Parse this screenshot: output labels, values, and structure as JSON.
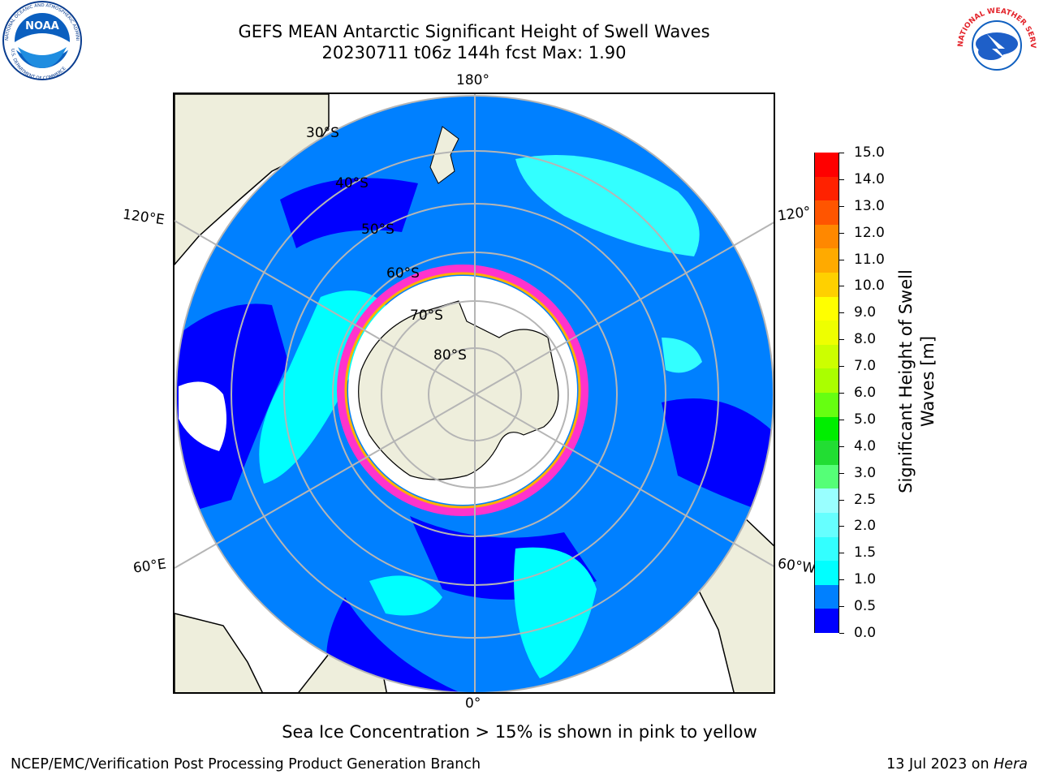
{
  "title_line1": "GEFS MEAN Antarctic Significant Height of Swell Waves",
  "title_line2": "20230711 t06z 144h fcst   Max: 1.90",
  "map": {
    "projection": "south polar stereographic",
    "longitude_labels": [
      {
        "text": "180°",
        "lon": 180
      },
      {
        "text": "120°E",
        "lon": 120
      },
      {
        "text": "120°",
        "lon": -120
      },
      {
        "text": "60°E",
        "lon": 60
      },
      {
        "text": "60°W",
        "lon": -60
      },
      {
        "text": "0°",
        "lon": 0
      }
    ],
    "latitude_labels": [
      "30°S",
      "40°S",
      "50°S",
      "60°S",
      "70°S",
      "80°S"
    ],
    "land_color": "#eeeedc",
    "ice_edge_colors": [
      "#ff33cc",
      "#ffb000",
      "#ffff33"
    ]
  },
  "colorbar": {
    "label": "Significant Height of Swell Waves [m]",
    "label_line1": "Significant Height of Swell",
    "label_line2": "Waves [m]",
    "ticks": [
      "0.0",
      "0.5",
      "1.0",
      "1.5",
      "2.0",
      "2.5",
      "3.0",
      "4.0",
      "5.0",
      "6.0",
      "7.0",
      "8.0",
      "9.0",
      "10.0",
      "11.0",
      "12.0",
      "13.0",
      "14.0",
      "15.0"
    ],
    "colors": [
      "#0000ff",
      "#0080ff",
      "#00ffff",
      "#33ffff",
      "#66ffff",
      "#99ffff",
      "#55ff77",
      "#22dd33",
      "#00ee00",
      "#66ff11",
      "#aaff00",
      "#ccff00",
      "#eeff00",
      "#ffff00",
      "#ffd000",
      "#ffaa00",
      "#ff8800",
      "#ff5500",
      "#ff2200",
      "#ff0000"
    ]
  },
  "note": "Sea Ice Concentration > 15% is shown in pink to yellow",
  "footer_left": "NCEP/EMC/Verification Post Processing Product Generation Branch",
  "footer_right_text": "13 Jul 2023 on",
  "footer_right_machine": "Hera",
  "logos": {
    "noaa": "NOAA",
    "nws_ring": "NATIONAL WEATHER SERVICE",
    "noaa_ring": "NATIONAL OCEANIC AND ATMOSPHERIC ADMINISTRATION",
    "noaa_ring_bottom": "U.S. DEPARTMENT OF COMMERCE"
  }
}
